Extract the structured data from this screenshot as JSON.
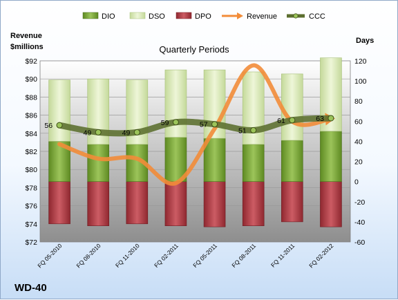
{
  "chart_data": {
    "type": "bar",
    "title": "Quarterly Periods",
    "company": "WD-40",
    "left_axis_label_line1": "Revenue",
    "left_axis_label_line2": "$millions",
    "right_axis_label": "Days",
    "left_ylim": [
      72,
      92
    ],
    "left_ticks": [
      "$72",
      "$74",
      "$76",
      "$78",
      "$80",
      "$82",
      "$84",
      "$86",
      "$88",
      "$90",
      "$92"
    ],
    "right_ylim": [
      -60,
      120
    ],
    "right_ticks": [
      "-60",
      "-40",
      "-20",
      "0",
      "20",
      "40",
      "60",
      "80",
      "100",
      "120"
    ],
    "categories": [
      "FQ 05-2010",
      "FQ 08-2010",
      "FQ 11-2010",
      "FQ 02-2011",
      "FQ 05-2011",
      "FQ 08-2011",
      "FQ 11-2011",
      "FQ 02-2012"
    ],
    "legend": [
      "DIO",
      "DSO",
      "DPO",
      "Revenue",
      "CCC"
    ],
    "series": [
      {
        "name": "DIO",
        "axis": "days",
        "color": "#7da63a",
        "values": [
          40,
          37,
          37,
          44,
          43,
          37,
          41,
          50
        ]
      },
      {
        "name": "DSO",
        "axis": "days",
        "color": "#d8e8b0",
        "values": [
          61,
          65,
          64,
          67,
          68,
          72,
          66,
          73
        ]
      },
      {
        "name": "DPO",
        "axis": "days",
        "color": "#b8414a",
        "values": [
          -42,
          -44,
          -42,
          -44,
          -45,
          -44,
          -40,
          -45
        ]
      },
      {
        "name": "Revenue",
        "axis": "revenue",
        "color": "#f28c38",
        "values": [
          82.8,
          81.2,
          81.2,
          78.5,
          84.5,
          91.5,
          85.3,
          85.6
        ]
      },
      {
        "name": "CCC",
        "axis": "days",
        "color": "#5b6e2e",
        "values": [
          56,
          49,
          49,
          59,
          57,
          51,
          61,
          63
        ]
      }
    ],
    "ccc_labels": [
      "56",
      "49",
      "49",
      "59",
      "57",
      "51",
      "61",
      "63"
    ],
    "legend_position": "top",
    "grid": true
  }
}
